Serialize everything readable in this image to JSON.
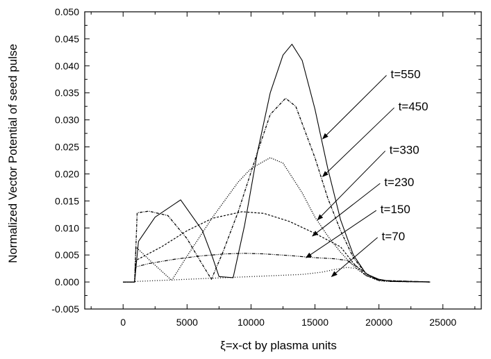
{
  "chart_data": {
    "type": "line",
    "xlabel": "ξ=x-ct by plasma units",
    "ylabel": "Normalized Vector Potential of seed pulse",
    "xlim": [
      -3000,
      28000
    ],
    "ylim": [
      -0.005,
      0.05
    ],
    "x_ticks": [
      0,
      5000,
      10000,
      15000,
      20000,
      25000
    ],
    "x_tick_labels": [
      "0",
      "5000",
      "10000",
      "15000",
      "20000",
      "25000"
    ],
    "y_ticks": [
      -0.005,
      0.0,
      0.005,
      0.01,
      0.015,
      0.02,
      0.025,
      0.03,
      0.035,
      0.04,
      0.045,
      0.05
    ],
    "y_tick_labels": [
      "-0.005",
      "0.000",
      "0.005",
      "0.010",
      "0.015",
      "0.020",
      "0.025",
      "0.030",
      "0.035",
      "0.040",
      "0.045",
      "0.050"
    ],
    "grid": false,
    "series": [
      {
        "name": "t=550",
        "x": [
          0,
          900,
          1200,
          2500,
          4500,
          6200,
          7000,
          7500,
          8600,
          9500,
          10500,
          11500,
          12500,
          13200,
          14000,
          15000,
          16000,
          17000,
          18000,
          19000,
          20000,
          21000,
          24000
        ],
        "y": [
          0,
          0,
          0.0075,
          0.012,
          0.0152,
          0.0095,
          0.0045,
          0.001,
          0.0008,
          0.0105,
          0.024,
          0.035,
          0.042,
          0.044,
          0.041,
          0.032,
          0.021,
          0.0115,
          0.005,
          0.0015,
          0.0005,
          0.0001,
          0
        ]
      },
      {
        "name": "t=450",
        "x": [
          0,
          900,
          1100,
          2000,
          3500,
          5000,
          6000,
          6900,
          7800,
          9000,
          10500,
          11500,
          12700,
          13500,
          15000,
          16000,
          17000,
          18000,
          19000,
          20000,
          24000
        ],
        "y": [
          0,
          0,
          0.0128,
          0.0131,
          0.0123,
          0.008,
          0.004,
          0.0005,
          0.0055,
          0.013,
          0.024,
          0.031,
          0.034,
          0.0325,
          0.023,
          0.0155,
          0.0095,
          0.0045,
          0.0015,
          0.0003,
          0
        ]
      },
      {
        "name": "t=330",
        "x": [
          0,
          900,
          1000,
          2000,
          3800,
          5000,
          7000,
          9000,
          10000,
          11500,
          12500,
          14000,
          15000,
          16000,
          17000,
          18000,
          19000,
          20000,
          24000
        ],
        "y": [
          0,
          0,
          0.0065,
          0.0042,
          0.0003,
          0.0048,
          0.012,
          0.0185,
          0.021,
          0.023,
          0.022,
          0.0165,
          0.012,
          0.0085,
          0.0055,
          0.003,
          0.0012,
          0.0003,
          0
        ]
      },
      {
        "name": "t=230",
        "x": [
          0,
          900,
          1000,
          3000,
          5000,
          7000,
          9300,
          11000,
          13000,
          15000,
          17000,
          18000,
          19000,
          20000,
          24000
        ],
        "y": [
          0,
          0,
          0.004,
          0.0065,
          0.0095,
          0.0118,
          0.013,
          0.0127,
          0.0112,
          0.009,
          0.0065,
          0.0035,
          0.0012,
          0.0003,
          0
        ]
      },
      {
        "name": "t=150",
        "x": [
          0,
          900,
          1000,
          2000,
          4000,
          6000,
          8000,
          9500,
          11000,
          13000,
          15000,
          16500,
          17500,
          18500,
          19500,
          20500,
          24000
        ],
        "y": [
          0,
          0,
          0.0028,
          0.0034,
          0.0042,
          0.0048,
          0.0052,
          0.0053,
          0.0052,
          0.0049,
          0.0045,
          0.0043,
          0.004,
          0.0025,
          0.0008,
          0.0001,
          0
        ]
      },
      {
        "name": "t=70",
        "x": [
          0,
          900,
          1000,
          3000,
          6000,
          9000,
          12000,
          14000,
          15500,
          16500,
          17500,
          18200,
          19000,
          20000,
          24000
        ],
        "y": [
          0,
          0,
          0.0001,
          0.0003,
          0.0006,
          0.0009,
          0.0012,
          0.0014,
          0.0018,
          0.0023,
          0.0027,
          0.0025,
          0.0012,
          0.0002,
          0
        ]
      }
    ],
    "annotations": [
      {
        "text": "t=550",
        "label_at": [
          20700,
          0.0385
        ],
        "points_to": [
          15600,
          0.0265
        ]
      },
      {
        "text": "t=450",
        "label_at": [
          21300,
          0.0325
        ],
        "points_to": [
          15600,
          0.0195
        ]
      },
      {
        "text": "t=330",
        "label_at": [
          20600,
          0.0245
        ],
        "points_to": [
          15200,
          0.0115
        ]
      },
      {
        "text": "t=230",
        "label_at": [
          20200,
          0.0185
        ],
        "points_to": [
          14800,
          0.0085
        ]
      },
      {
        "text": "t=150",
        "label_at": [
          19900,
          0.0135
        ],
        "points_to": [
          14300,
          0.0045
        ]
      },
      {
        "text": "t=70",
        "label_at": [
          20000,
          0.0085
        ],
        "points_to": [
          16300,
          0.001
        ]
      }
    ]
  }
}
